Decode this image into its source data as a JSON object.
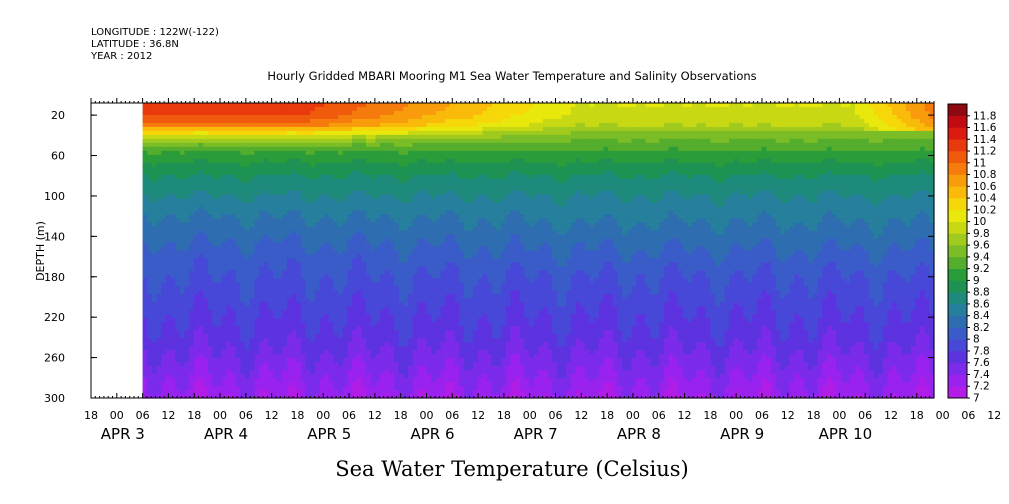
{
  "meta": {
    "longitude": "LONGITUDE : 122W(-122)",
    "latitude": "LATITUDE : 36.8N",
    "year": "YEAR : 2012"
  },
  "chart_data": {
    "type": "heatmap",
    "title": "Hourly Gridded MBARI Mooring M1 Sea Water Temperature and Salinity Observations",
    "bottom_label": "Sea Water Temperature (Celsius)",
    "ylabel": "DEPTH (m)",
    "y_ticks": [
      20,
      60,
      100,
      140,
      180,
      220,
      260,
      300
    ],
    "y_range": [
      8,
      300
    ],
    "y_inverted": true,
    "hour_ticks": [
      "18",
      "00",
      "06",
      "12",
      "18",
      "00",
      "06",
      "12",
      "18",
      "00",
      "06",
      "12",
      "18",
      "00",
      "06",
      "12",
      "18",
      "00",
      "06",
      "12",
      "18",
      "00",
      "06",
      "12",
      "18",
      "00",
      "06",
      "12",
      "18",
      "00",
      "06",
      "12",
      "18",
      "00",
      "06",
      "12",
      "18"
    ],
    "day_labels": [
      {
        "label": "APR  3",
        "x": "2012-04-03"
      },
      {
        "label": "APR  4",
        "x": "2012-04-04"
      },
      {
        "label": "APR  5",
        "x": "2012-04-05"
      },
      {
        "label": "APR  6",
        "x": "2012-04-06"
      },
      {
        "label": "APR  7",
        "x": "2012-04-07"
      },
      {
        "label": "APR  8",
        "x": "2012-04-08"
      },
      {
        "label": "APR  9",
        "x": "2012-04-09"
      },
      {
        "label": "APR 10",
        "x": "2012-04-10"
      }
    ],
    "time_range": [
      "2012-04-02 18:00",
      "2012-04-10 22:00"
    ],
    "data_start": "2012-04-03 06:00",
    "colorbar": {
      "levels": [
        7,
        7.2,
        7.4,
        7.6,
        7.8,
        8,
        8.2,
        8.4,
        8.6,
        8.8,
        9,
        9.2,
        9.4,
        9.6,
        9.8,
        10,
        10.2,
        10.4,
        10.6,
        10.8,
        11,
        11.2,
        11.4,
        11.6,
        11.8
      ],
      "labels": [
        "7",
        "7.2",
        "7.4",
        "7.6",
        "7.8",
        "8",
        "8.2",
        "8.4",
        "8.6",
        "8.8",
        "9",
        "9.2",
        "9.4",
        "9.6",
        "9.8",
        "10",
        "10.2",
        "10.4",
        "10.6",
        "10.8",
        "11",
        "11.2",
        "11.4",
        "11.6",
        "11.8"
      ],
      "colors": [
        "#b11de6",
        "#9a22ee",
        "#7b2be9",
        "#5d33e0",
        "#4848d8",
        "#3a5cc8",
        "#2e6eb0",
        "#267f9c",
        "#1e8a7c",
        "#1e9252",
        "#2a9d3a",
        "#54ad2c",
        "#7abd26",
        "#a1ca1e",
        "#c8d914",
        "#e8e80c",
        "#f6d80a",
        "#f9ba0a",
        "#f89c0c",
        "#f57c0c",
        "#f05a0c",
        "#e83a0c",
        "#dc1a10",
        "#c20a12",
        "#8e0a10"
      ]
    },
    "depth_profile": {
      "depth": [
        10,
        20,
        30,
        40,
        50,
        60,
        80,
        100,
        120,
        140,
        160,
        180,
        200,
        220,
        240,
        260,
        280,
        300
      ],
      "temperature_apr4": [
        11.3,
        11.2,
        10.9,
        10.0,
        9.4,
        9.1,
        8.8,
        8.6,
        8.4,
        8.25,
        8.1,
        8.0,
        7.9,
        7.8,
        7.7,
        7.55,
        7.4,
        7.25
      ],
      "temperature_apr9": [
        10.0,
        9.95,
        9.8,
        9.5,
        9.3,
        9.1,
        8.8,
        8.6,
        8.45,
        8.3,
        8.15,
        8.0,
        7.9,
        7.8,
        7.7,
        7.55,
        7.4,
        7.25
      ]
    }
  }
}
